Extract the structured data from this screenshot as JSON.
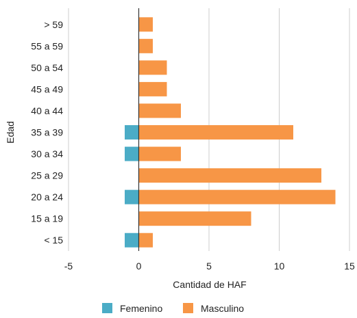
{
  "chart_data": {
    "type": "bar",
    "orientation": "horizontal",
    "title": "",
    "xlabel": "Cantidad de HAF",
    "ylabel": "Edad",
    "xlim": [
      -5,
      15
    ],
    "xticks": [
      -5,
      0,
      5,
      10,
      15
    ],
    "grid": true,
    "legend_position": "bottom-center",
    "categories": [
      "> 59",
      "55 a 59",
      "50 a 54",
      "45 a 49",
      "40 a 44",
      "35 a 39",
      "30 a 34",
      "25 a 29",
      "20 a 24",
      "15 a 19",
      "< 15"
    ],
    "series": [
      {
        "name": "Femenino",
        "color": "#4BACC6",
        "values": [
          0,
          0,
          0,
          0,
          0,
          -1,
          -1,
          0,
          -1,
          0,
          -1
        ]
      },
      {
        "name": "Masculino",
        "color": "#F79646",
        "values": [
          1,
          1,
          2,
          2,
          3,
          11,
          3,
          13,
          14,
          8,
          1
        ]
      }
    ]
  }
}
